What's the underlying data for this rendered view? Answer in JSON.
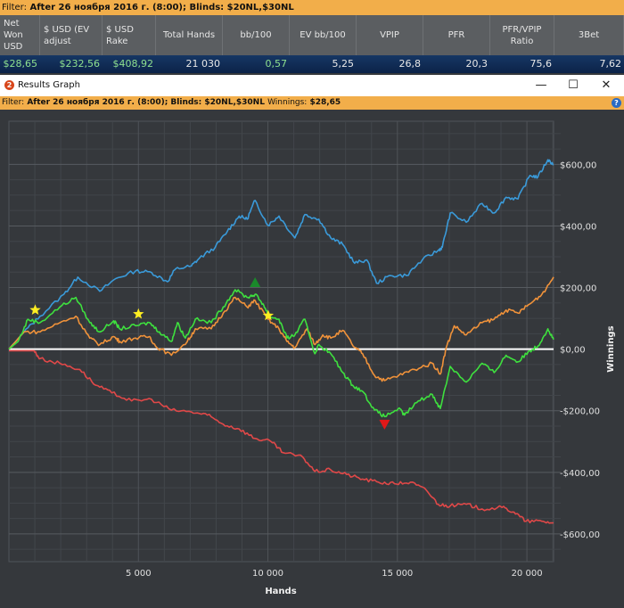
{
  "filter_top": {
    "label": "Filter:",
    "text": "After 26 ноября 2016 г. (8:00); Blinds: $20NL,$30NL"
  },
  "stats": {
    "headers": [
      "Net Won USD",
      "$ USD (EV adjust",
      "$ USD Rake",
      "Total Hands",
      "bb/100",
      "EV bb/100",
      "VPIP",
      "PFR",
      "PFR/VPIP Ratio",
      "3Bet"
    ],
    "values": [
      "$28,65",
      "$232,56",
      "$408,92",
      "21 030",
      "0,57",
      "5,25",
      "26,8",
      "20,3",
      "75,6",
      "7,62"
    ]
  },
  "window": {
    "title": "Results Graph",
    "logo": "2",
    "minimize": "—",
    "maximize": "☐",
    "close": "✕"
  },
  "filter_graph": {
    "label": "Filter:",
    "text": "After 26 ноября 2016 г. (8:00); Blinds: $20NL,$30NL",
    "winnings_label": "Winnings:",
    "winnings_value": "$28,65",
    "help": "?"
  },
  "chart_data": {
    "type": "line",
    "xlabel": "Hands",
    "ylabel": "Winnings",
    "xlim": [
      0,
      21030
    ],
    "ylim": [
      -690,
      740
    ],
    "xticks": [
      {
        "v": 5000,
        "label": "5 000"
      },
      {
        "v": 10000,
        "label": "10 000"
      },
      {
        "v": 15000,
        "label": "15 000"
      },
      {
        "v": 20000,
        "label": "20 000"
      }
    ],
    "yticks": [
      {
        "v": 600,
        "label": "$600,00"
      },
      {
        "v": 400,
        "label": "$400,00"
      },
      {
        "v": 200,
        "label": "$200,00"
      },
      {
        "v": 0,
        "label": "$0,00"
      },
      {
        "v": -200,
        "label": "-$200,00"
      },
      {
        "v": -400,
        "label": "-$400,00"
      },
      {
        "v": -600,
        "label": "-$600,00"
      }
    ],
    "grid": true,
    "series": [
      {
        "color": "#3a9ad9",
        "points": [
          [
            0,
            0
          ],
          [
            585,
            56
          ],
          [
            1200,
            107
          ],
          [
            2123,
            178
          ],
          [
            2661,
            234
          ],
          [
            3507,
            188
          ],
          [
            4122,
            229
          ],
          [
            4891,
            254
          ],
          [
            5506,
            249
          ],
          [
            6121,
            219
          ],
          [
            6429,
            260
          ],
          [
            7044,
            270
          ],
          [
            7352,
            295
          ],
          [
            7967,
            331
          ],
          [
            8428,
            382
          ],
          [
            8890,
            432
          ],
          [
            9197,
            422
          ],
          [
            9505,
            483
          ],
          [
            9997,
            402
          ],
          [
            10428,
            432
          ],
          [
            11043,
            361
          ],
          [
            11427,
            437
          ],
          [
            11966,
            422
          ],
          [
            12427,
            361
          ],
          [
            12889,
            340
          ],
          [
            13350,
            279
          ],
          [
            13811,
            290
          ],
          [
            14196,
            214
          ],
          [
            14734,
            239
          ],
          [
            15349,
            239
          ],
          [
            15964,
            290
          ],
          [
            16580,
            321
          ],
          [
            16733,
            331
          ],
          [
            17041,
            442
          ],
          [
            17656,
            412
          ],
          [
            18271,
            473
          ],
          [
            18733,
            442
          ],
          [
            19194,
            493
          ],
          [
            19655,
            488
          ],
          [
            20117,
            564
          ],
          [
            20424,
            559
          ],
          [
            20809,
            615
          ],
          [
            21030,
            600
          ]
        ]
      },
      {
        "color": "#f0923a",
        "points": [
          [
            0,
            0
          ],
          [
            585,
            56
          ],
          [
            1200,
            56
          ],
          [
            1969,
            86
          ],
          [
            2584,
            107
          ],
          [
            3122,
            36
          ],
          [
            3507,
            15
          ],
          [
            4045,
            41
          ],
          [
            4276,
            25
          ],
          [
            4891,
            36
          ],
          [
            5429,
            41
          ],
          [
            5660,
            10
          ],
          [
            6275,
            -20
          ],
          [
            6890,
            25
          ],
          [
            7198,
            66
          ],
          [
            7813,
            66
          ],
          [
            8275,
            117
          ],
          [
            8736,
            168
          ],
          [
            9197,
            137
          ],
          [
            9505,
            158
          ],
          [
            9997,
            97
          ],
          [
            10428,
            66
          ],
          [
            10736,
            25
          ],
          [
            11043,
            5
          ],
          [
            11505,
            66
          ],
          [
            11812,
            15
          ],
          [
            12120,
            46
          ],
          [
            12427,
            36
          ],
          [
            12889,
            61
          ],
          [
            13350,
            5
          ],
          [
            13658,
            -15
          ],
          [
            14119,
            -86
          ],
          [
            14504,
            -102
          ],
          [
            15042,
            -86
          ],
          [
            15657,
            -66
          ],
          [
            16349,
            -46
          ],
          [
            16656,
            -81
          ],
          [
            16887,
            5
          ],
          [
            17195,
            76
          ],
          [
            17656,
            46
          ],
          [
            18271,
            86
          ],
          [
            18733,
            97
          ],
          [
            19194,
            127
          ],
          [
            19655,
            117
          ],
          [
            20117,
            147
          ],
          [
            20578,
            178
          ],
          [
            21030,
            234
          ]
        ]
      },
      {
        "color": "#3ee03e",
        "points": [
          [
            0,
            0
          ],
          [
            354,
            25
          ],
          [
            738,
            97
          ],
          [
            1200,
            86
          ],
          [
            1969,
            137
          ],
          [
            2584,
            168
          ],
          [
            3122,
            86
          ],
          [
            3507,
            56
          ],
          [
            4045,
            92
          ],
          [
            4276,
            66
          ],
          [
            4891,
            76
          ],
          [
            5429,
            86
          ],
          [
            5814,
            56
          ],
          [
            6275,
            25
          ],
          [
            6506,
            86
          ],
          [
            6813,
            36
          ],
          [
            7198,
            97
          ],
          [
            7813,
            86
          ],
          [
            8275,
            137
          ],
          [
            8736,
            193
          ],
          [
            9197,
            168
          ],
          [
            9505,
            178
          ],
          [
            9813,
            147
          ],
          [
            10043,
            107
          ],
          [
            10428,
            97
          ],
          [
            10736,
            36
          ],
          [
            11043,
            46
          ],
          [
            11427,
            97
          ],
          [
            11812,
            -15
          ],
          [
            11966,
            15
          ],
          [
            12427,
            -15
          ],
          [
            12889,
            -76
          ],
          [
            13273,
            -117
          ],
          [
            13658,
            -137
          ],
          [
            14119,
            -198
          ],
          [
            14504,
            -219
          ],
          [
            15042,
            -193
          ],
          [
            15272,
            -214
          ],
          [
            15810,
            -168
          ],
          [
            16349,
            -147
          ],
          [
            16656,
            -193
          ],
          [
            17041,
            -56
          ],
          [
            17656,
            -107
          ],
          [
            18271,
            -46
          ],
          [
            18733,
            -76
          ],
          [
            19194,
            -20
          ],
          [
            19655,
            -41
          ],
          [
            20117,
            -5
          ],
          [
            20424,
            10
          ],
          [
            20809,
            66
          ],
          [
            21030,
            31
          ]
        ]
      },
      {
        "color": "#e04848",
        "points": [
          [
            0,
            -5
          ],
          [
            969,
            -5
          ],
          [
            1200,
            -31
          ],
          [
            1969,
            -46
          ],
          [
            2738,
            -66
          ],
          [
            3353,
            -117
          ],
          [
            3968,
            -142
          ],
          [
            4737,
            -168
          ],
          [
            5506,
            -163
          ],
          [
            6275,
            -198
          ],
          [
            7044,
            -204
          ],
          [
            7660,
            -214
          ],
          [
            8275,
            -244
          ],
          [
            8890,
            -259
          ],
          [
            9505,
            -290
          ],
          [
            10120,
            -300
          ],
          [
            10582,
            -336
          ],
          [
            11351,
            -351
          ],
          [
            11812,
            -397
          ],
          [
            12427,
            -392
          ],
          [
            13043,
            -407
          ],
          [
            13658,
            -422
          ],
          [
            14273,
            -432
          ],
          [
            14888,
            -437
          ],
          [
            15503,
            -432
          ],
          [
            16118,
            -458
          ],
          [
            16580,
            -504
          ],
          [
            17041,
            -509
          ],
          [
            17656,
            -504
          ],
          [
            18271,
            -519
          ],
          [
            19040,
            -514
          ],
          [
            19502,
            -529
          ],
          [
            19963,
            -559
          ],
          [
            20578,
            -559
          ],
          [
            21030,
            -564
          ]
        ]
      }
    ],
    "markers": [
      {
        "type": "star",
        "color": "#ffee22",
        "x": 1015,
        "y": 127
      },
      {
        "type": "star",
        "color": "#ffee22",
        "x": 5000,
        "y": 114
      },
      {
        "type": "star",
        "color": "#ffee22",
        "x": 10013,
        "y": 109
      },
      {
        "type": "triangle-up",
        "color": "#1a8a2a",
        "x": 9505,
        "y": 216
      },
      {
        "type": "triangle-down",
        "color": "#e01818",
        "x": 14504,
        "y": -244
      }
    ]
  }
}
